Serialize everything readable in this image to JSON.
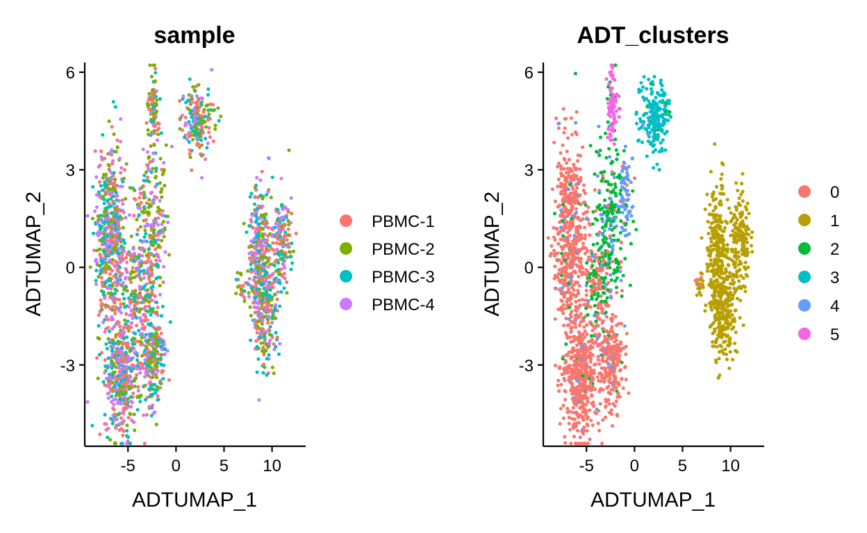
{
  "chart_data": [
    {
      "type": "scatter",
      "title": "sample",
      "xlabel": "ADTUMAP_1",
      "ylabel": "ADTUMAP_2",
      "xlim": [
        -9.5,
        13.5
      ],
      "ylim": [
        -5.5,
        6.3
      ],
      "xticks": [
        -5,
        0,
        5,
        10
      ],
      "xtick_labels": [
        "-5",
        "0",
        "5",
        "10"
      ],
      "yticks": [
        -3,
        0,
        3,
        6
      ],
      "ytick_labels": [
        "-3",
        "0",
        "3",
        "6"
      ],
      "color_by": "sample",
      "legend": [
        {
          "name": "PBMC-1",
          "color": "#F8766D"
        },
        {
          "name": "PBMC-2",
          "color": "#7CAE00"
        },
        {
          "name": "PBMC-3",
          "color": "#00BFC4"
        },
        {
          "name": "PBMC-4",
          "color": "#C77CFF"
        }
      ],
      "clusters": [
        {
          "cx": -6.8,
          "cy": 1.0,
          "sx": 0.8,
          "sy": 1.4,
          "n": 520,
          "mix": [
            0.26,
            0.24,
            0.25,
            0.25
          ]
        },
        {
          "cx": -2.5,
          "cy": 1.3,
          "sx": 0.8,
          "sy": 1.3,
          "n": 230,
          "mix": [
            0.28,
            0.36,
            0.18,
            0.18
          ]
        },
        {
          "cx": -4.0,
          "cy": -0.6,
          "sx": 0.9,
          "sy": 0.9,
          "n": 170,
          "mix": [
            0.26,
            0.32,
            0.21,
            0.21
          ]
        },
        {
          "cx": -5.6,
          "cy": -3.3,
          "sx": 0.9,
          "sy": 0.95,
          "n": 430,
          "mix": [
            0.27,
            0.24,
            0.24,
            0.25
          ]
        },
        {
          "cx": -2.4,
          "cy": -2.8,
          "sx": 0.7,
          "sy": 0.75,
          "n": 250,
          "mix": [
            0.27,
            0.26,
            0.23,
            0.24
          ]
        },
        {
          "cx": -2.3,
          "cy": 5.0,
          "sx": 0.25,
          "sy": 0.55,
          "n": 90,
          "mix": [
            0.3,
            0.4,
            0.15,
            0.15
          ]
        },
        {
          "cx": 2.2,
          "cy": 4.6,
          "sx": 0.8,
          "sy": 0.55,
          "n": 190,
          "mix": [
            0.27,
            0.3,
            0.2,
            0.23
          ]
        },
        {
          "cx": 8.6,
          "cy": 0.6,
          "sx": 0.55,
          "sy": 1.0,
          "n": 260,
          "mix": [
            0.25,
            0.27,
            0.24,
            0.24
          ]
        },
        {
          "cx": 11.0,
          "cy": 0.8,
          "sx": 0.55,
          "sy": 0.75,
          "n": 160,
          "mix": [
            0.25,
            0.27,
            0.24,
            0.24
          ]
        },
        {
          "cx": 9.2,
          "cy": -1.5,
          "sx": 0.7,
          "sy": 0.75,
          "n": 230,
          "mix": [
            0.26,
            0.26,
            0.24,
            0.24
          ]
        },
        {
          "cx": 6.8,
          "cy": -0.6,
          "sx": 0.35,
          "sy": 0.18,
          "n": 20,
          "mix": [
            0.35,
            0.35,
            0.15,
            0.15
          ]
        }
      ]
    },
    {
      "type": "scatter",
      "title": "ADT_clusters",
      "xlabel": "ADTUMAP_1",
      "ylabel": "ADTUMAP_2",
      "xlim": [
        -9.5,
        13.5
      ],
      "ylim": [
        -5.5,
        6.3
      ],
      "xticks": [
        -5,
        0,
        5,
        10
      ],
      "xtick_labels": [
        "-5",
        "0",
        "5",
        "10"
      ],
      "yticks": [
        -3,
        0,
        3,
        6
      ],
      "ytick_labels": [
        "-3",
        "0",
        "3",
        "6"
      ],
      "color_by": "ADT_clusters",
      "legend": [
        {
          "name": "0",
          "color": "#F8766D"
        },
        {
          "name": "1",
          "color": "#B79F00"
        },
        {
          "name": "2",
          "color": "#00BA38"
        },
        {
          "name": "3",
          "color": "#00BFC4"
        },
        {
          "name": "4",
          "color": "#619CFF"
        },
        {
          "name": "5",
          "color": "#F564E3"
        }
      ],
      "clusters": [
        {
          "cx": -6.8,
          "cy": 1.0,
          "sx": 0.8,
          "sy": 1.4,
          "n": 520,
          "mix": [
            0.9,
            0.0,
            0.04,
            0.0,
            0.06,
            0.0
          ]
        },
        {
          "cx": -2.5,
          "cy": 1.3,
          "sx": 0.8,
          "sy": 1.3,
          "n": 230,
          "mix": [
            0.1,
            0.0,
            0.68,
            0.0,
            0.22,
            0.0
          ]
        },
        {
          "cx": -0.9,
          "cy": 2.2,
          "sx": 0.4,
          "sy": 0.6,
          "n": 70,
          "mix": [
            0.05,
            0.0,
            0.15,
            0.0,
            0.8,
            0.0
          ]
        },
        {
          "cx": -4.0,
          "cy": -0.6,
          "sx": 0.9,
          "sy": 0.9,
          "n": 170,
          "mix": [
            0.55,
            0.0,
            0.38,
            0.0,
            0.07,
            0.0
          ]
        },
        {
          "cx": -5.6,
          "cy": -3.3,
          "sx": 0.9,
          "sy": 0.95,
          "n": 430,
          "mix": [
            0.94,
            0.0,
            0.03,
            0.0,
            0.03,
            0.0
          ]
        },
        {
          "cx": -2.4,
          "cy": -2.8,
          "sx": 0.7,
          "sy": 0.75,
          "n": 250,
          "mix": [
            0.92,
            0.0,
            0.03,
            0.0,
            0.05,
            0.0
          ]
        },
        {
          "cx": -2.3,
          "cy": 5.0,
          "sx": 0.25,
          "sy": 0.55,
          "n": 90,
          "mix": [
            0.0,
            0.0,
            0.12,
            0.0,
            0.0,
            0.88
          ]
        },
        {
          "cx": 2.2,
          "cy": 4.6,
          "sx": 0.8,
          "sy": 0.55,
          "n": 190,
          "mix": [
            0.0,
            0.0,
            0.04,
            0.93,
            0.03,
            0.0
          ]
        },
        {
          "cx": 8.6,
          "cy": 0.6,
          "sx": 0.55,
          "sy": 1.0,
          "n": 260,
          "mix": [
            0.0,
            1.0,
            0.0,
            0.0,
            0.0,
            0.0
          ]
        },
        {
          "cx": 11.0,
          "cy": 0.8,
          "sx": 0.55,
          "sy": 0.75,
          "n": 160,
          "mix": [
            0.0,
            1.0,
            0.0,
            0.0,
            0.0,
            0.0
          ]
        },
        {
          "cx": 9.2,
          "cy": -1.5,
          "sx": 0.7,
          "sy": 0.75,
          "n": 230,
          "mix": [
            0.0,
            1.0,
            0.0,
            0.0,
            0.0,
            0.0
          ]
        },
        {
          "cx": 6.8,
          "cy": -0.6,
          "sx": 0.35,
          "sy": 0.18,
          "n": 20,
          "mix": [
            0.3,
            0.7,
            0.0,
            0.0,
            0.0,
            0.0
          ]
        }
      ]
    }
  ]
}
